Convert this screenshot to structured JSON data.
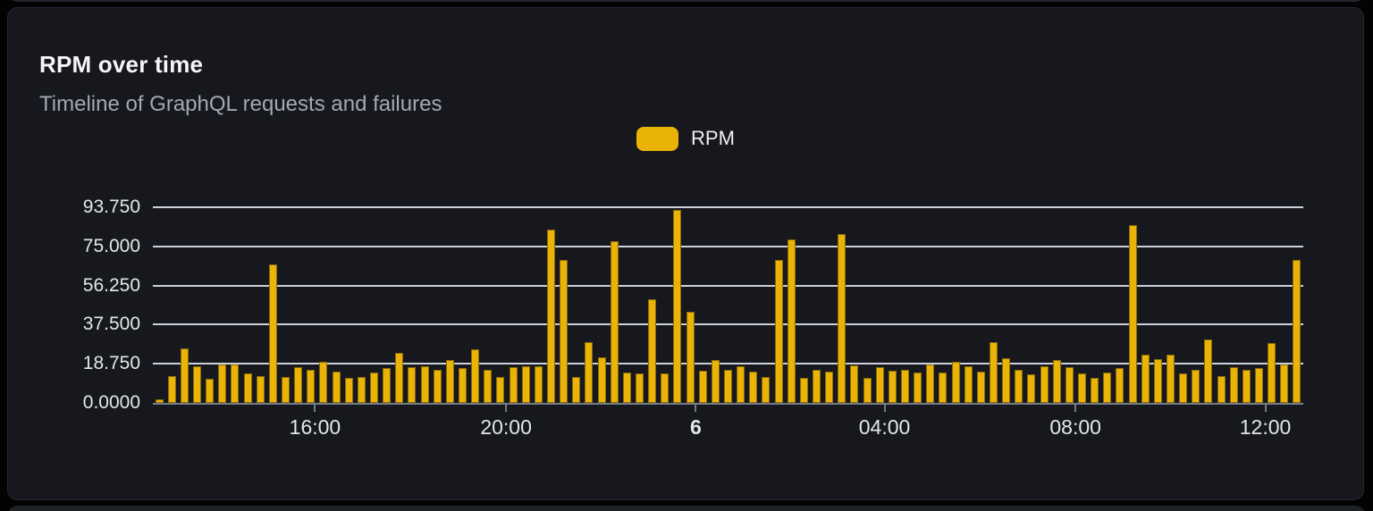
{
  "card": {
    "title": "RPM over time",
    "subtitle": "Timeline of GraphQL requests and failures"
  },
  "legend": {
    "label": "RPM",
    "swatch_color": "#eab308"
  },
  "chart_data": {
    "type": "bar",
    "title": "RPM over time",
    "xlabel": "",
    "ylabel": "",
    "ylim": [
      0,
      93.75
    ],
    "grid": "horizontal",
    "legend_position": "top-center",
    "y_ticks": [
      {
        "value": 93.75,
        "label": "93.750"
      },
      {
        "value": 75.0,
        "label": "75.000"
      },
      {
        "value": 56.25,
        "label": "56.250"
      },
      {
        "value": 37.5,
        "label": "37.500"
      },
      {
        "value": 18.75,
        "label": "18.750"
      },
      {
        "value": 0,
        "label": "0.0000"
      }
    ],
    "x_ticks": [
      {
        "label": "16:00",
        "pos": 0.141,
        "bold": false
      },
      {
        "label": "20:00",
        "pos": 0.307,
        "bold": false
      },
      {
        "label": "6",
        "pos": 0.472,
        "bold": true
      },
      {
        "label": "04:00",
        "pos": 0.636,
        "bold": false
      },
      {
        "label": "08:00",
        "pos": 0.802,
        "bold": false
      },
      {
        "label": "12:00",
        "pos": 0.967,
        "bold": false
      }
    ],
    "series": [
      {
        "name": "RPM",
        "color": "#eab308",
        "values": [
          1.5,
          13,
          26,
          17.5,
          11.5,
          18.5,
          18.5,
          14,
          13,
          66.5,
          12.5,
          17,
          16,
          19.5,
          15,
          12,
          12.5,
          14.5,
          16.5,
          24,
          17,
          17.5,
          16,
          20.5,
          16.5,
          25.5,
          16,
          12.5,
          17,
          17.5,
          17.5,
          83,
          68.5,
          12.5,
          29,
          22,
          77.5,
          14.5,
          14,
          49.5,
          14,
          92.5,
          43.5,
          15.5,
          20.5,
          16,
          17.5,
          15,
          12.5,
          68.5,
          78.5,
          12,
          16,
          15,
          81,
          18,
          12,
          17,
          15.5,
          16,
          14.5,
          18.5,
          14.5,
          19.5,
          17.5,
          15,
          29,
          21.5,
          16,
          13.5,
          17.5,
          20.5,
          17,
          14,
          12,
          14.5,
          16.5,
          85,
          23,
          21,
          23,
          14,
          16,
          30.5,
          13,
          17,
          16,
          16.5,
          28.5,
          18.5,
          68.5
        ]
      }
    ]
  }
}
